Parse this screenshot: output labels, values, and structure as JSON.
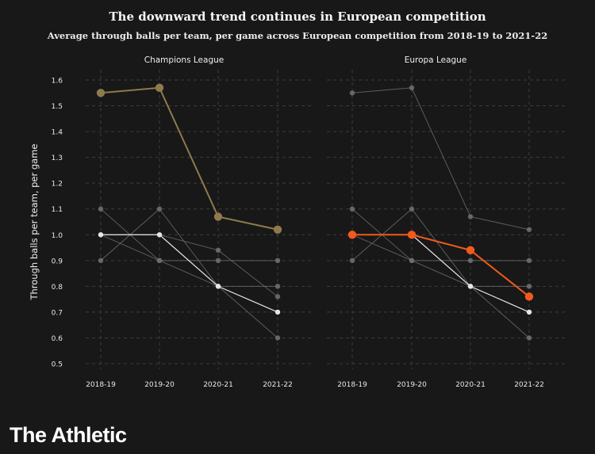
{
  "title": "The downward trend continues in European competition",
  "subtitle": "Average through balls per team, per game across European competition from 2018-19 to 2021-22",
  "brand": "The Athletic",
  "colors": {
    "background": "#181818",
    "grid": "#3d3d3d",
    "background_series": "#6e6e6e",
    "white_series": "#e6e6e6",
    "champions_highlight": "#8f7a4e",
    "europa_highlight": "#f25a1c"
  },
  "chart_data": [
    {
      "type": "line",
      "title": "Champions League",
      "ylabel": "Through balls per team, per game",
      "xlabel": "",
      "categories": [
        "2018-19",
        "2019-20",
        "2020-21",
        "2021-22"
      ],
      "ylim": [
        0.5,
        1.6
      ],
      "yticks": [
        "0.5",
        "0.6",
        "0.7",
        "0.8",
        "0.9",
        "1.0",
        "1.1",
        "1.2",
        "1.3",
        "1.4",
        "1.5",
        "1.6"
      ],
      "grid": true,
      "highlight": "Champions League",
      "series": [
        {
          "values": [
            1.55,
            1.57,
            1.07,
            1.02
          ],
          "role": "highlight"
        },
        {
          "values": [
            1.0,
            1.0,
            0.8,
            0.7
          ],
          "role": "white"
        },
        {
          "values": [
            1.1,
            0.9,
            0.9,
            0.9
          ],
          "role": "grey"
        },
        {
          "values": [
            1.0,
            0.9,
            0.8,
            0.6
          ],
          "role": "grey"
        },
        {
          "values": [
            0.9,
            1.1,
            0.8,
            0.8
          ],
          "role": "grey"
        },
        {
          "values": [
            1.0,
            1.0,
            0.94,
            0.76
          ],
          "role": "grey"
        }
      ]
    },
    {
      "type": "line",
      "title": "Europa League",
      "categories": [
        "2018-19",
        "2019-20",
        "2020-21",
        "2021-22"
      ],
      "ylim": [
        0.5,
        1.6
      ],
      "grid": true,
      "highlight": "Europa League",
      "series": [
        {
          "values": [
            1.0,
            1.0,
            0.94,
            0.76
          ],
          "role": "highlight"
        },
        {
          "values": [
            1.55,
            1.57,
            1.07,
            1.02
          ],
          "role": "grey"
        },
        {
          "values": [
            1.0,
            1.0,
            0.8,
            0.7
          ],
          "role": "white"
        },
        {
          "values": [
            1.1,
            0.9,
            0.9,
            0.9
          ],
          "role": "grey"
        },
        {
          "values": [
            1.0,
            0.9,
            0.8,
            0.6
          ],
          "role": "grey"
        },
        {
          "values": [
            0.9,
            1.1,
            0.8,
            0.8
          ],
          "role": "grey"
        }
      ]
    }
  ]
}
